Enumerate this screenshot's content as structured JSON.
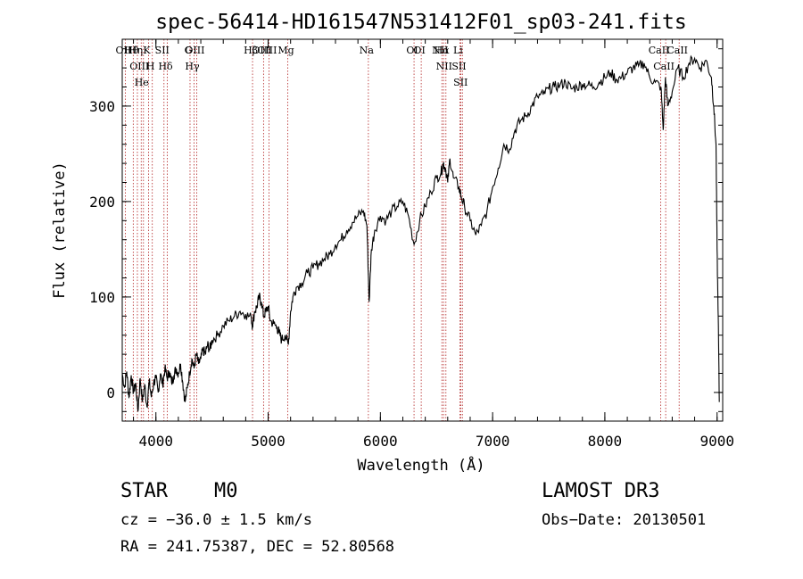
{
  "chart_data": {
    "type": "line",
    "title": "spec-56414-HD161547N531412F01_sp03-241.fits",
    "xlabel": "Wavelength (Å)",
    "ylabel": "Flux (relative)",
    "xlim": [
      3700,
      9050
    ],
    "ylim": [
      -30,
      370
    ],
    "x_ticks": [
      4000,
      5000,
      6000,
      7000,
      8000,
      9000
    ],
    "x_tick_labels": [
      "4000",
      "5000",
      "6000",
      "7000",
      "8000",
      "9000"
    ],
    "y_ticks": [
      0,
      100,
      200,
      300
    ],
    "y_tick_labels": [
      "0",
      "100",
      "200",
      "300"
    ],
    "series": [
      {
        "name": "spectrum",
        "x": [
          3700,
          3720,
          3740,
          3760,
          3780,
          3800,
          3820,
          3840,
          3860,
          3880,
          3900,
          3920,
          3940,
          3960,
          3980,
          4000,
          4020,
          4040,
          4060,
          4080,
          4100,
          4120,
          4140,
          4160,
          4180,
          4200,
          4220,
          4240,
          4260,
          4280,
          4300,
          4320,
          4340,
          4360,
          4380,
          4400,
          4420,
          4440,
          4460,
          4480,
          4500,
          4550,
          4600,
          4650,
          4700,
          4750,
          4800,
          4850,
          4860,
          4880,
          4900,
          4920,
          4940,
          4960,
          4980,
          5000,
          5020,
          5050,
          5080,
          5100,
          5120,
          5150,
          5180,
          5200,
          5220,
          5250,
          5300,
          5350,
          5400,
          5450,
          5500,
          5550,
          5600,
          5650,
          5700,
          5750,
          5800,
          5850,
          5880,
          5900,
          5920,
          5950,
          6000,
          6050,
          6100,
          6150,
          6200,
          6250,
          6300,
          6350,
          6400,
          6450,
          6500,
          6540,
          6560,
          6580,
          6600,
          6620,
          6650,
          6700,
          6720,
          6750,
          6800,
          6850,
          6900,
          6950,
          7000,
          7050,
          7100,
          7150,
          7200,
          7250,
          7300,
          7350,
          7400,
          7450,
          7500,
          7550,
          7600,
          7650,
          7700,
          7750,
          7800,
          7850,
          7900,
          7950,
          8000,
          8050,
          8100,
          8150,
          8200,
          8250,
          8300,
          8350,
          8400,
          8450,
          8500,
          8520,
          8540,
          8560,
          8600,
          8650,
          8700,
          8750,
          8800,
          8850,
          8900,
          8950,
          8970,
          8990,
          9000,
          9010,
          9020
        ],
        "y": [
          20,
          5,
          22,
          -5,
          18,
          0,
          10,
          -20,
          15,
          -10,
          8,
          -15,
          12,
          -5,
          10,
          15,
          0,
          20,
          8,
          25,
          15,
          22,
          10,
          18,
          25,
          20,
          30,
          10,
          -10,
          5,
          20,
          35,
          25,
          40,
          30,
          35,
          45,
          40,
          50,
          45,
          55,
          60,
          70,
          75,
          80,
          85,
          82,
          78,
          70,
          85,
          90,
          100,
          95,
          80,
          85,
          90,
          75,
          72,
          68,
          62,
          55,
          60,
          50,
          85,
          100,
          110,
          115,
          125,
          130,
          135,
          140,
          145,
          155,
          160,
          170,
          178,
          185,
          190,
          175,
          95,
          150,
          170,
          185,
          180,
          190,
          195,
          200,
          185,
          155,
          180,
          195,
          210,
          225,
          230,
          240,
          235,
          220,
          245,
          225,
          215,
          205,
          195,
          180,
          165,
          175,
          190,
          215,
          235,
          260,
          255,
          275,
          285,
          290,
          300,
          310,
          312,
          318,
          320,
          322,
          325,
          318,
          320,
          323,
          322,
          320,
          325,
          330,
          335,
          328,
          330,
          335,
          340,
          342,
          345,
          330,
          325,
          320,
          275,
          330,
          300,
          315,
          340,
          330,
          345,
          350,
          340,
          348,
          330,
          300,
          260,
          150,
          80,
          -10
        ]
      }
    ],
    "reference_lines": [
      {
        "label": "Hθ",
        "wavelength": 3798
      },
      {
        "label": "OII",
        "wavelength": 3727
      },
      {
        "label": "OIII",
        "wavelength": 3869
      },
      {
        "label": "He",
        "wavelength": 3889
      },
      {
        "label": "Hη",
        "wavelength": 3835
      },
      {
        "label": "K",
        "wavelength": 3934
      },
      {
        "label": "H",
        "wavelength": 3968
      },
      {
        "label": "SII",
        "wavelength": 4072
      },
      {
        "label": "Hδ",
        "wavelength": 4102
      },
      {
        "label": "OIII",
        "wavelength": 4363
      },
      {
        "label": "Hγ",
        "wavelength": 4340
      },
      {
        "label": "G",
        "wavelength": 4304
      },
      {
        "label": "Hβ",
        "wavelength": 4861
      },
      {
        "label": "OIII",
        "wavelength": 4959
      },
      {
        "label": "OIII",
        "wavelength": 5007
      },
      {
        "label": "Mg",
        "wavelength": 5175
      },
      {
        "label": "Na",
        "wavelength": 5893
      },
      {
        "label": "OI",
        "wavelength": 6300
      },
      {
        "label": "OI",
        "wavelength": 6364
      },
      {
        "label": "NII",
        "wavelength": 6548
      },
      {
        "label": "Hα",
        "wavelength": 6563
      },
      {
        "label": "NII",
        "wavelength": 6584
      },
      {
        "label": "Li",
        "wavelength": 6708
      },
      {
        "label": "SII",
        "wavelength": 6717
      },
      {
        "label": "SII",
        "wavelength": 6731
      },
      {
        "label": "CaII",
        "wavelength": 8498
      },
      {
        "label": "CaII",
        "wavelength": 8542
      },
      {
        "label": "CaII",
        "wavelength": 8662
      }
    ],
    "colors": {
      "line": "#000000",
      "reference": "#b22222"
    }
  },
  "info": {
    "class": "STAR",
    "subclass": "M0",
    "survey": "LAMOST DR3",
    "redshift": "cz = −36.0 ± 1.5 km/s",
    "obs_date": "Obs−Date: 20130501",
    "coords": "RA = 241.75387, DEC =  52.80568"
  }
}
